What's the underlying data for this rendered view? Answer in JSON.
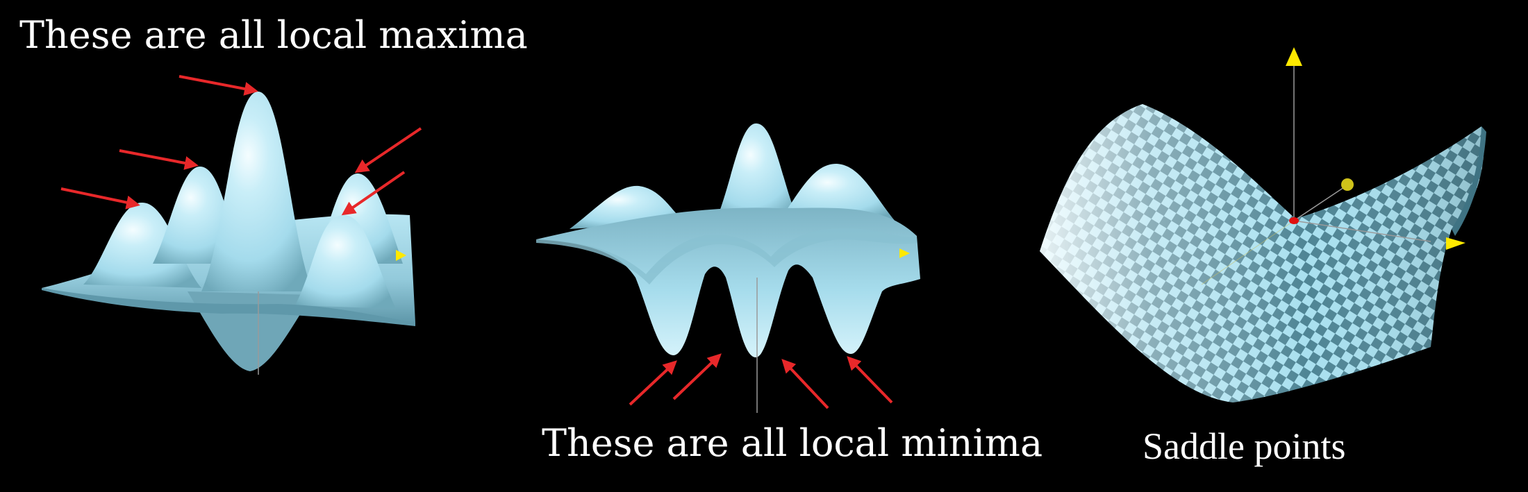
{
  "panels": [
    {
      "id": "maxima",
      "caption": "These are all local maxima",
      "arrow_count": 5
    },
    {
      "id": "minima",
      "caption": "These are all local minima",
      "arrow_count": 4
    },
    {
      "id": "saddle",
      "caption": "Saddle points",
      "arrow_count": 0
    }
  ],
  "colors": {
    "background": "#000000",
    "surface": "#a4dbec",
    "surface_shade": "#5c96a8",
    "surface_highlight": "#f2fcff",
    "checker_dark": "#4f8595",
    "arrow": "#e8282a",
    "axis": "#9a9a9a",
    "axis_marker": "#ffe900",
    "origin_marker": "#e01010",
    "text": "#ffffff"
  }
}
